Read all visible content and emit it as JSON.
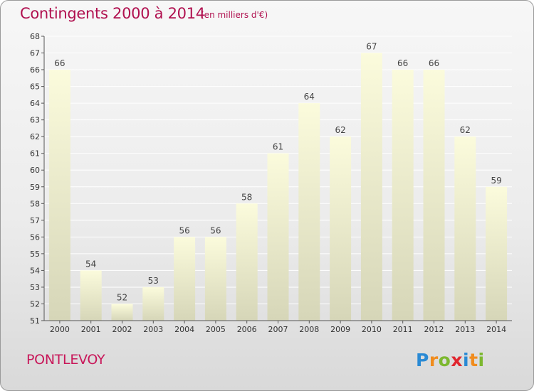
{
  "header": {
    "title": "Contingents 2000 à 2014",
    "subtitle": "(en milliers d'€)"
  },
  "footer": {
    "commune": "PONTLEVOY",
    "logo_letters": [
      "P",
      "r",
      "o",
      "x",
      "i",
      "t",
      "i"
    ],
    "logo_colors": [
      "#2a8ad4",
      "#f08c1e",
      "#7cb82f",
      "#e0262f",
      "#2a8ad4",
      "#f08c1e",
      "#7cb82f"
    ]
  },
  "chart_data": {
    "type": "bar",
    "title": "Contingents 2000 à 2014",
    "subtitle": "(en milliers d'€)",
    "categories": [
      "2000",
      "2001",
      "2002",
      "2003",
      "2004",
      "2005",
      "2006",
      "2007",
      "2008",
      "2009",
      "2010",
      "2011",
      "2012",
      "2013",
      "2014"
    ],
    "values": [
      66,
      54,
      52,
      53,
      56,
      56,
      58,
      61,
      64,
      62,
      67,
      66,
      66,
      62,
      59
    ],
    "ylim": [
      51,
      68
    ],
    "yticks": [
      51,
      52,
      53,
      54,
      55,
      56,
      57,
      58,
      59,
      60,
      61,
      62,
      63,
      64,
      65,
      66,
      67,
      68
    ],
    "grid": "horizontal",
    "data_labels": true,
    "bar_colors": [
      "#fbfbdc",
      "#d6d6b8"
    ],
    "grid_color": "#ffffff"
  }
}
